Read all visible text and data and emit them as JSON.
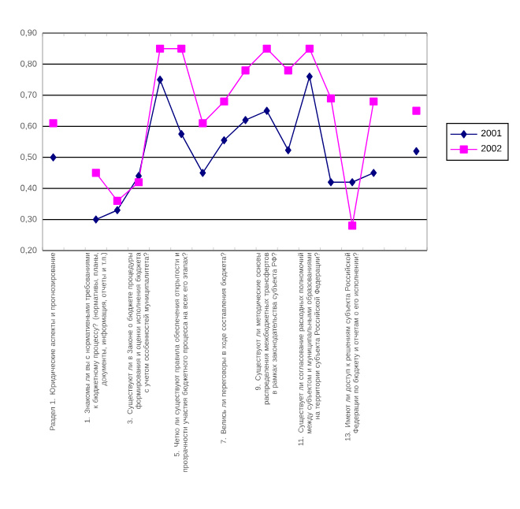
{
  "chart_data": {
    "type": "line",
    "categories": [
      "Раздел 1. Юридические аспекты и прогнозирование",
      null,
      "1. Знакомы ли вы с нормативными требованиями к бюджетному процессу? (нормативы, планы, документы, информация, отчеты и т.п.)",
      null,
      "3. Существуют ли в Законе о бюджете процедуры формирования и оценки исполнения бюджета с учетом особенностей муниципалитета?",
      null,
      "5. Четко ли существуют правила обеспечения открытости и прозрачности участия бюджетного процесса на всех его этапах?",
      null,
      "7. Велись ли переговоры в ходе составления бюджета?",
      null,
      "9. Существуют ли методические основы распределения межбюджетных трансфертов в рамках законодательства субъекта РФ?",
      null,
      "11. Существует ли согласование расходных полномочий между субъектом и муниципальными образованиями на территории субъекта Российской Федерации?",
      null,
      "13. Имеют ли доступ к решениям субъекта Российской Федерации по бюджету и отчетам о его исполнении?",
      null,
      null,
      null
    ],
    "series": [
      {
        "name": "2001",
        "color": "#000080",
        "marker": "diamond",
        "values": [
          0.5,
          null,
          0.3,
          0.33,
          0.44,
          0.75,
          0.575,
          0.45,
          0.555,
          0.62,
          0.65,
          0.523,
          0.76,
          0.42,
          0.42,
          0.45,
          null,
          0.52
        ]
      },
      {
        "name": "2002",
        "color": "#ff00ff",
        "marker": "square",
        "values": [
          0.61,
          null,
          0.45,
          0.36,
          0.42,
          0.85,
          0.85,
          0.61,
          0.68,
          0.78,
          0.85,
          0.78,
          0.85,
          0.69,
          0.28,
          0.68,
          null,
          0.65
        ]
      }
    ],
    "ylim": [
      0.2,
      0.9
    ],
    "yticks": [
      {
        "value": 0.2,
        "label": "0,20"
      },
      {
        "value": 0.3,
        "label": "0,30"
      },
      {
        "value": 0.4,
        "label": "0,40"
      },
      {
        "value": 0.5,
        "label": "0,50"
      },
      {
        "value": 0.6,
        "label": "0,60"
      },
      {
        "value": 0.7,
        "label": "0,70"
      },
      {
        "value": 0.8,
        "label": "0,80"
      },
      {
        "value": 0.9,
        "label": "0,90"
      }
    ],
    "grid": "y",
    "legend": "right",
    "line_style": "solid"
  }
}
